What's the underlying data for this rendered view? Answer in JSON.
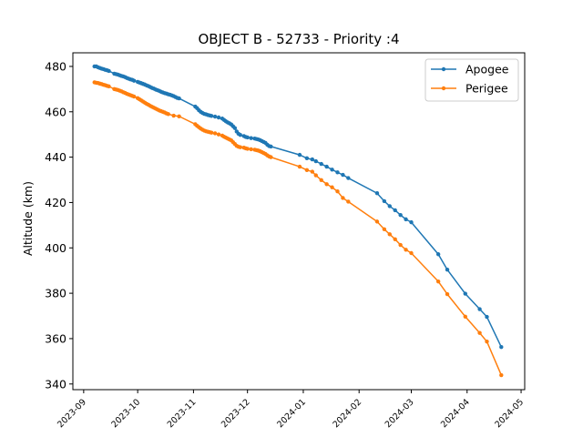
{
  "chart_data": {
    "type": "line",
    "title": "OBJECT B - 52733 - Priority :4",
    "xlabel": "",
    "ylabel": "Altitude (km)",
    "x_ticks": [
      "2023-09",
      "2023-10",
      "2023-11",
      "2023-12",
      "2024-01",
      "2024-02",
      "2024-03",
      "2024-04",
      "2024-05"
    ],
    "y_ticks": [
      340,
      360,
      380,
      400,
      420,
      440,
      460,
      480
    ],
    "xlim": [
      "2023-08-26",
      "2024-05-03"
    ],
    "ylim": [
      337.5,
      486
    ],
    "legend_position": "top-right",
    "grid": false,
    "colors": {
      "Apogee": "#1f77b4",
      "Perigee": "#ff7f0e"
    },
    "series": [
      {
        "name": "Apogee",
        "points": [
          [
            "2023-09-07",
            480.0
          ],
          [
            "2023-09-08",
            480.0
          ],
          [
            "2023-09-09",
            479.6
          ],
          [
            "2023-09-10",
            479.3
          ],
          [
            "2023-09-11",
            479.0
          ],
          [
            "2023-09-12",
            478.8
          ],
          [
            "2023-09-13",
            478.5
          ],
          [
            "2023-09-14",
            478.3
          ],
          [
            "2023-09-15",
            478.0
          ],
          [
            "2023-09-18",
            476.8
          ],
          [
            "2023-09-19",
            476.6
          ],
          [
            "2023-09-20",
            476.4
          ],
          [
            "2023-09-21",
            476.1
          ],
          [
            "2023-09-22",
            475.8
          ],
          [
            "2023-09-23",
            475.6
          ],
          [
            "2023-09-24",
            475.3
          ],
          [
            "2023-09-25",
            474.9
          ],
          [
            "2023-09-26",
            474.6
          ],
          [
            "2023-09-27",
            474.3
          ],
          [
            "2023-09-28",
            474.1
          ],
          [
            "2023-09-29",
            473.7
          ],
          [
            "2023-10-01",
            473.2
          ],
          [
            "2023-10-02",
            472.9
          ],
          [
            "2023-10-03",
            472.6
          ],
          [
            "2023-10-04",
            472.3
          ],
          [
            "2023-10-05",
            472.0
          ],
          [
            "2023-10-06",
            471.6
          ],
          [
            "2023-10-07",
            471.3
          ],
          [
            "2023-10-08",
            470.9
          ],
          [
            "2023-10-09",
            470.5
          ],
          [
            "2023-10-10",
            470.2
          ],
          [
            "2023-10-11",
            469.8
          ],
          [
            "2023-10-12",
            469.5
          ],
          [
            "2023-10-13",
            469.2
          ],
          [
            "2023-10-14",
            468.8
          ],
          [
            "2023-10-15",
            468.5
          ],
          [
            "2023-10-16",
            468.2
          ],
          [
            "2023-10-17",
            468.0
          ],
          [
            "2023-10-18",
            467.7
          ],
          [
            "2023-10-19",
            467.5
          ],
          [
            "2023-10-20",
            467.2
          ],
          [
            "2023-10-21",
            466.9
          ],
          [
            "2023-10-22",
            466.5
          ],
          [
            "2023-10-23",
            466.1
          ],
          [
            "2023-10-24",
            465.9
          ],
          [
            "2023-11-02",
            462.3
          ],
          [
            "2023-11-03",
            461.6
          ],
          [
            "2023-11-04",
            460.7
          ],
          [
            "2023-11-05",
            460.0
          ],
          [
            "2023-11-06",
            459.5
          ],
          [
            "2023-11-07",
            459.1
          ],
          [
            "2023-11-08",
            458.9
          ],
          [
            "2023-11-09",
            458.6
          ],
          [
            "2023-11-10",
            458.4
          ],
          [
            "2023-11-11",
            458.2
          ],
          [
            "2023-11-13",
            457.9
          ],
          [
            "2023-11-15",
            457.5
          ],
          [
            "2023-11-17",
            457.0
          ],
          [
            "2023-11-18",
            456.4
          ],
          [
            "2023-11-19",
            455.8
          ],
          [
            "2023-11-20",
            455.3
          ],
          [
            "2023-11-21",
            454.9
          ],
          [
            "2023-11-22",
            454.4
          ],
          [
            "2023-11-23",
            453.6
          ],
          [
            "2023-11-24",
            452.8
          ],
          [
            "2023-11-25",
            451.3
          ],
          [
            "2023-11-26",
            450.3
          ],
          [
            "2023-11-27",
            449.8
          ],
          [
            "2023-11-29",
            449.3
          ],
          [
            "2023-11-30",
            448.9
          ],
          [
            "2023-12-01",
            448.7
          ],
          [
            "2023-12-03",
            448.4
          ],
          [
            "2023-12-05",
            448.2
          ],
          [
            "2023-12-06",
            448.0
          ],
          [
            "2023-12-07",
            447.8
          ],
          [
            "2023-12-08",
            447.5
          ],
          [
            "2023-12-09",
            447.1
          ],
          [
            "2023-12-10",
            446.7
          ],
          [
            "2023-12-11",
            446.3
          ],
          [
            "2023-12-12",
            445.5
          ],
          [
            "2023-12-13",
            444.9
          ],
          [
            "2023-12-14",
            444.7
          ],
          [
            "2023-12-30",
            441.0
          ],
          [
            "2024-01-03",
            439.5
          ],
          [
            "2024-01-06",
            439.0
          ],
          [
            "2024-01-08",
            438.2
          ],
          [
            "2024-01-11",
            437.0
          ],
          [
            "2024-01-14",
            435.8
          ],
          [
            "2024-01-17",
            434.5
          ],
          [
            "2024-01-20",
            433.3
          ],
          [
            "2024-01-23",
            432.2
          ],
          [
            "2024-01-26",
            430.8
          ],
          [
            "2024-02-11",
            424.1
          ],
          [
            "2024-02-15",
            420.6
          ],
          [
            "2024-02-18",
            418.4
          ],
          [
            "2024-02-21",
            416.6
          ],
          [
            "2024-02-24",
            414.5
          ],
          [
            "2024-02-27",
            412.6
          ],
          [
            "2024-03-01",
            411.3
          ],
          [
            "2024-03-16",
            397.2
          ],
          [
            "2024-03-21",
            390.4
          ],
          [
            "2024-03-31",
            379.8
          ],
          [
            "2024-04-08",
            373.0
          ],
          [
            "2024-04-12",
            369.6
          ],
          [
            "2024-04-20",
            356.3
          ]
        ]
      },
      {
        "name": "Perigee",
        "points": [
          [
            "2023-09-07",
            473.0
          ],
          [
            "2023-09-08",
            472.8
          ],
          [
            "2023-09-09",
            472.7
          ],
          [
            "2023-09-10",
            472.4
          ],
          [
            "2023-09-11",
            472.2
          ],
          [
            "2023-09-12",
            471.9
          ],
          [
            "2023-09-13",
            471.7
          ],
          [
            "2023-09-14",
            471.4
          ],
          [
            "2023-09-15",
            471.2
          ],
          [
            "2023-09-18",
            470.0
          ],
          [
            "2023-09-19",
            469.8
          ],
          [
            "2023-09-20",
            469.6
          ],
          [
            "2023-09-21",
            469.3
          ],
          [
            "2023-09-22",
            469.0
          ],
          [
            "2023-09-23",
            468.6
          ],
          [
            "2023-09-24",
            468.3
          ],
          [
            "2023-09-25",
            467.9
          ],
          [
            "2023-09-26",
            467.6
          ],
          [
            "2023-09-27",
            467.3
          ],
          [
            "2023-09-28",
            467.0
          ],
          [
            "2023-09-29",
            466.7
          ],
          [
            "2023-10-01",
            466.0
          ],
          [
            "2023-10-02",
            465.5
          ],
          [
            "2023-10-03",
            465.0
          ],
          [
            "2023-10-04",
            464.5
          ],
          [
            "2023-10-05",
            464.0
          ],
          [
            "2023-10-06",
            463.5
          ],
          [
            "2023-10-07",
            463.1
          ],
          [
            "2023-10-08",
            462.6
          ],
          [
            "2023-10-09",
            462.2
          ],
          [
            "2023-10-10",
            461.8
          ],
          [
            "2023-10-11",
            461.4
          ],
          [
            "2023-10-12",
            461.0
          ],
          [
            "2023-10-13",
            460.6
          ],
          [
            "2023-10-14",
            460.3
          ],
          [
            "2023-10-15",
            460.0
          ],
          [
            "2023-10-16",
            459.7
          ],
          [
            "2023-10-17",
            459.3
          ],
          [
            "2023-10-18",
            459.0
          ],
          [
            "2023-10-21",
            458.3
          ],
          [
            "2023-10-24",
            458.0
          ],
          [
            "2023-11-02",
            454.5
          ],
          [
            "2023-11-03",
            453.8
          ],
          [
            "2023-11-04",
            453.2
          ],
          [
            "2023-11-05",
            452.6
          ],
          [
            "2023-11-06",
            452.1
          ],
          [
            "2023-11-07",
            451.7
          ],
          [
            "2023-11-08",
            451.4
          ],
          [
            "2023-11-09",
            451.2
          ],
          [
            "2023-11-10",
            451.0
          ],
          [
            "2023-11-11",
            450.8
          ],
          [
            "2023-11-13",
            450.5
          ],
          [
            "2023-11-15",
            450.0
          ],
          [
            "2023-11-17",
            449.5
          ],
          [
            "2023-11-18",
            449.0
          ],
          [
            "2023-11-19",
            448.6
          ],
          [
            "2023-11-20",
            448.2
          ],
          [
            "2023-11-21",
            447.8
          ],
          [
            "2023-11-22",
            447.4
          ],
          [
            "2023-11-23",
            446.6
          ],
          [
            "2023-11-24",
            445.8
          ],
          [
            "2023-11-25",
            445.0
          ],
          [
            "2023-11-26",
            444.6
          ],
          [
            "2023-11-27",
            444.4
          ],
          [
            "2023-11-29",
            444.2
          ],
          [
            "2023-11-30",
            443.9
          ],
          [
            "2023-12-01",
            443.7
          ],
          [
            "2023-12-03",
            443.5
          ],
          [
            "2023-12-05",
            443.3
          ],
          [
            "2023-12-06",
            443.1
          ],
          [
            "2023-12-07",
            442.9
          ],
          [
            "2023-12-08",
            442.6
          ],
          [
            "2023-12-09",
            442.2
          ],
          [
            "2023-12-10",
            441.8
          ],
          [
            "2023-12-11",
            441.4
          ],
          [
            "2023-12-12",
            440.8
          ],
          [
            "2023-12-13",
            440.3
          ],
          [
            "2023-12-14",
            440.0
          ],
          [
            "2023-12-30",
            435.8
          ],
          [
            "2024-01-03",
            434.3
          ],
          [
            "2024-01-06",
            433.6
          ],
          [
            "2024-01-08",
            432.0
          ],
          [
            "2024-01-11",
            429.9
          ],
          [
            "2024-01-14",
            428.1
          ],
          [
            "2024-01-17",
            426.7
          ],
          [
            "2024-01-20",
            424.9
          ],
          [
            "2024-01-23",
            422.0
          ],
          [
            "2024-01-26",
            420.4
          ],
          [
            "2024-02-11",
            411.6
          ],
          [
            "2024-02-15",
            408.2
          ],
          [
            "2024-02-18",
            406.0
          ],
          [
            "2024-02-21",
            403.8
          ],
          [
            "2024-02-24",
            401.3
          ],
          [
            "2024-02-27",
            399.2
          ],
          [
            "2024-03-01",
            397.7
          ],
          [
            "2024-03-16",
            385.2
          ],
          [
            "2024-03-21",
            379.6
          ],
          [
            "2024-03-31",
            369.7
          ],
          [
            "2024-04-08",
            362.5
          ],
          [
            "2024-04-12",
            358.7
          ],
          [
            "2024-04-20",
            343.9
          ]
        ]
      }
    ]
  }
}
